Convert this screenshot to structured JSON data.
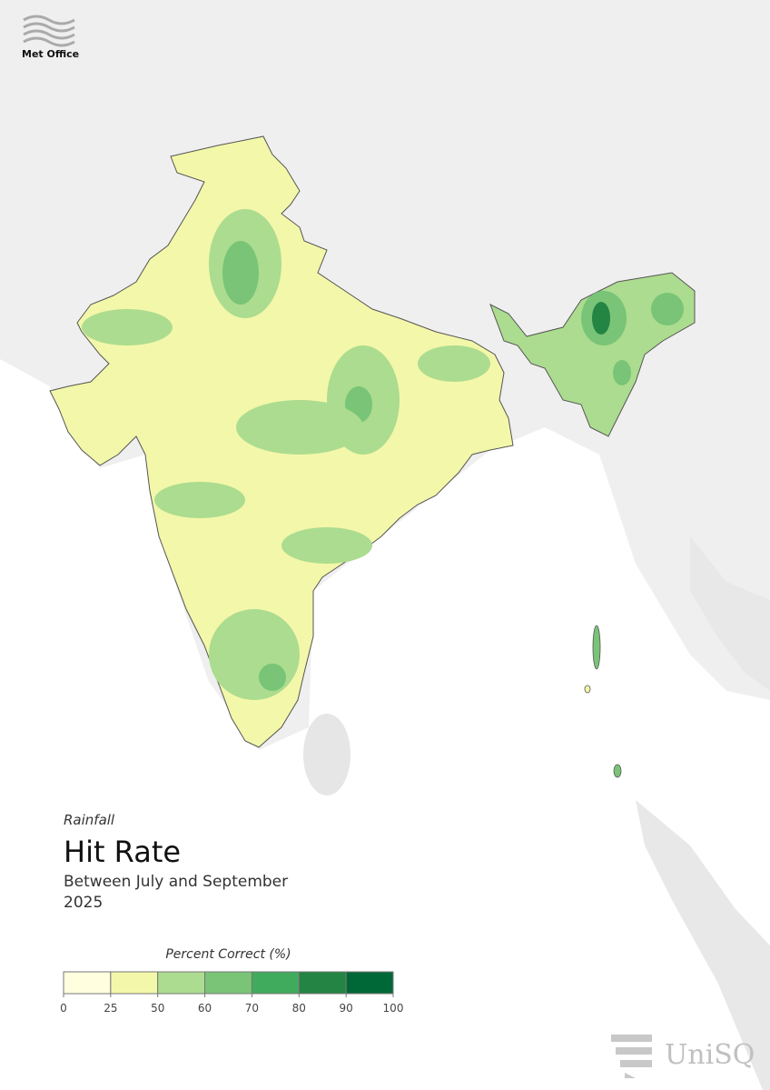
{
  "logo": "Met Office",
  "variable": "Rainfall",
  "title": "Hit Rate",
  "period": "Between July and September",
  "year": "2025",
  "legend": {
    "title": "Percent Correct (%)",
    "ticks": [
      0,
      25,
      50,
      60,
      70,
      80,
      90,
      100
    ],
    "colors": [
      "#ffffe0",
      "#f3f7a9",
      "#acdc8f",
      "#79c477",
      "#41ab5d",
      "#238443",
      "#006837"
    ]
  },
  "partner": "UniSQ"
}
